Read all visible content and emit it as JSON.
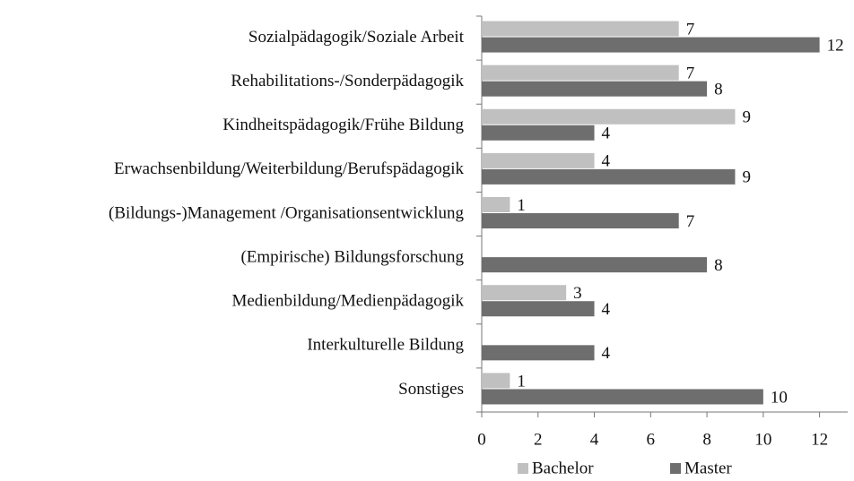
{
  "chart_data": {
    "type": "hbar",
    "categories": [
      "Sozialpädagogik/Soziale Arbeit",
      "Rehabilitations-/Sonderpädagogik",
      "Kindheitspädagogik/Frühe Bildung",
      "Erwachsenbildung/Weiterbildung/Berufspädagogik",
      "(Bildungs-)Management /Organisationsentwicklung",
      "(Empirische) Bildungsforschung",
      "Medienbildung/Medienpädagogik",
      "Interkulturelle Bildung",
      "Sonstiges"
    ],
    "series": [
      {
        "name": "Bachelor",
        "color": "#c0c0c0",
        "values": [
          7,
          7,
          9,
          4,
          1,
          null,
          3,
          null,
          1
        ]
      },
      {
        "name": "Master",
        "color": "#6e6e6e",
        "values": [
          12,
          8,
          4,
          9,
          7,
          8,
          4,
          4,
          10
        ]
      }
    ],
    "xlim": [
      0,
      13
    ],
    "xticks": [
      0,
      2,
      4,
      6,
      8,
      10,
      12
    ],
    "legend": "bottom"
  }
}
